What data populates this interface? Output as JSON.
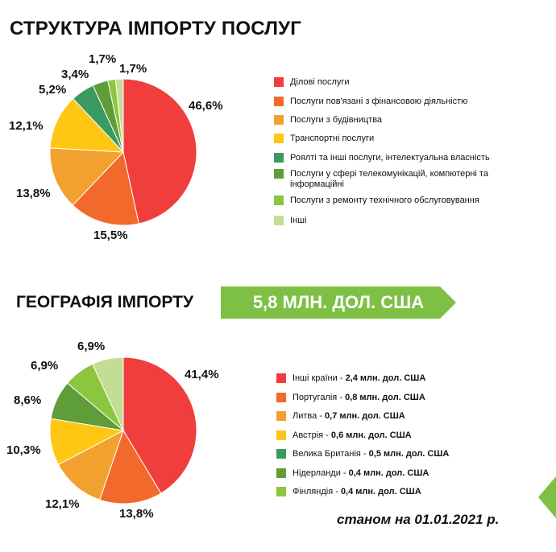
{
  "title1": "СТРУКТУРА ІМПОРТУ ПОСЛУГ",
  "title2": "ГЕОГРАФІЯ ІМПОРТУ",
  "banner": "5,8  МЛН. ДОЛ. США",
  "footnote": "станом на 01.01.2021 р.",
  "colors": {
    "banner": "#7dc043",
    "corner_arrow": "#7dc043"
  },
  "chart_data": [
    {
      "type": "pie",
      "title": "СТРУКТУРА ІМПОРТУ ПОСЛУГ",
      "labels": [
        "Ділові послуги",
        "Послуги пов'язані з фінансовою діяльністю",
        "Послуги з будівництва",
        "Транспортні послуги",
        "Роялті та інші послуги, інтелектуальна власність",
        "Послуги у сфері телекомунікацій, компютерні та інформаційні",
        "Послуги з ремонту технічного обслуговування",
        "Інші"
      ],
      "values": [
        46.6,
        15.5,
        13.8,
        12.1,
        5.2,
        3.4,
        1.7,
        1.7
      ],
      "value_labels": [
        "46,6%",
        "15,5%",
        "13,8%",
        "12,1%",
        "5,2%",
        "3,4%",
        "1,7%",
        "1,7%"
      ],
      "colors": [
        "#ef3e3b",
        "#f26a2b",
        "#f2a12f",
        "#ffc613",
        "#3a9a5f",
        "#5e9d3a",
        "#8cc63f",
        "#c4dd95"
      ],
      "legend_position": "right"
    },
    {
      "type": "pie",
      "title": "ГЕОГРАФІЯ ІМПОРТУ",
      "labels": [
        "Інші країни",
        "Португалія",
        "Литва",
        "Австрія",
        "Велика Британія",
        "Нідерланди",
        "Фінляндія"
      ],
      "legend_amounts": [
        "2,4 млн. дол. США",
        "0,8 млн. дол. США",
        "0,7 млн. дол. США",
        "0,6 млн. дол. США",
        "0,5 млн. дол. США",
        "0,4 млн. дол. США",
        "0,4 млн. дол. США"
      ],
      "values": [
        41.4,
        13.8,
        12.1,
        10.3,
        8.6,
        6.9,
        6.9
      ],
      "value_labels": [
        "41,4%",
        "13,8%",
        "12,1%",
        "10,3%",
        "8,6%",
        "6,9%",
        "6,9%"
      ],
      "colors": [
        "#ef3e3b",
        "#f26a2b",
        "#f2a12f",
        "#ffc613",
        "#5e9d3a",
        "#8cc63f",
        "#c4dd95"
      ],
      "legend_colors": [
        "#ef3e3b",
        "#f26a2b",
        "#f2a12f",
        "#ffc613",
        "#3a9a5f",
        "#5e9d3a",
        "#8cc63f"
      ],
      "legend_position": "right"
    }
  ]
}
